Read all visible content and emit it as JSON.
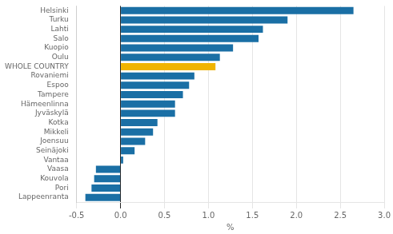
{
  "chart_data": {
    "type": "bar",
    "orientation": "horizontal",
    "categories": [
      "Helsinki",
      "Turku",
      "Lahti",
      "Salo",
      "Kuopio",
      "Oulu",
      "WHOLE COUNTRY",
      "Rovaniemi",
      "Espoo",
      "Tampere",
      "Hämeenlinna",
      "Jyväskylä",
      "Kotka",
      "Mikkeli",
      "Joensuu",
      "Seinäjoki",
      "Vantaa",
      "Vaasa",
      "Kouvola",
      "Pori",
      "Lappeenranta"
    ],
    "values": [
      2.65,
      1.9,
      1.62,
      1.57,
      1.28,
      1.13,
      1.08,
      0.84,
      0.78,
      0.71,
      0.62,
      0.62,
      0.42,
      0.37,
      0.28,
      0.16,
      0.03,
      -0.28,
      -0.3,
      -0.33,
      -0.4
    ],
    "colors": [
      "#1a6fa5",
      "#1a6fa5",
      "#1a6fa5",
      "#1a6fa5",
      "#1a6fa5",
      "#1a6fa5",
      "#f0b400",
      "#1a6fa5",
      "#1a6fa5",
      "#1a6fa5",
      "#1a6fa5",
      "#1a6fa5",
      "#1a6fa5",
      "#1a6fa5",
      "#1a6fa5",
      "#1a6fa5",
      "#1a6fa5",
      "#1a6fa5",
      "#1a6fa5",
      "#1a6fa5",
      "#1a6fa5"
    ],
    "xlabel": "%",
    "xlim": [
      -0.5,
      3.0
    ],
    "xticks": [
      -0.5,
      {
        "value": 0.0,
        "label": "0.0"
      },
      0.5,
      {
        "value": 1.0,
        "label": "1.0"
      },
      1.5,
      {
        "value": 2.0,
        "label": "2.0"
      },
      2.5,
      {
        "value": 3.0,
        "label": "3.0"
      }
    ],
    "grid": true
  }
}
